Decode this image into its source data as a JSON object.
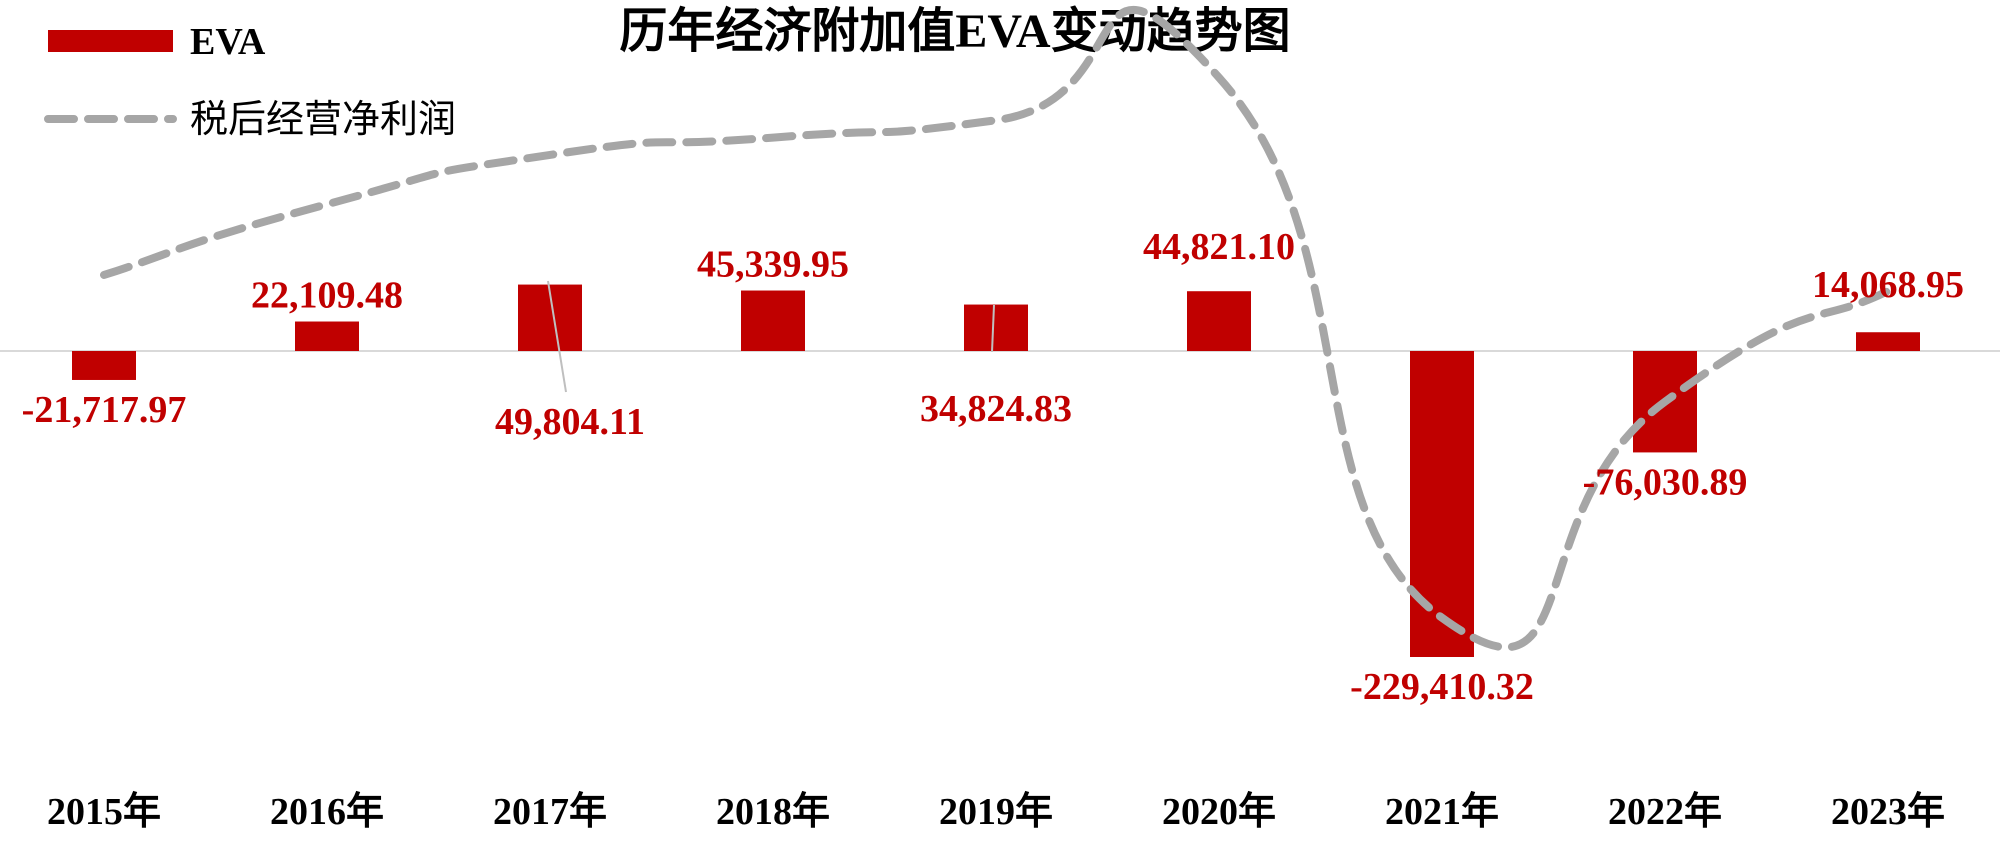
{
  "chart_data": {
    "type": "bar",
    "title": "历年经济附加值EVA变动趋势图",
    "categories": [
      "2015年",
      "2016年",
      "2017年",
      "2018年",
      "2019年",
      "2020年",
      "2021年",
      "2022年",
      "2023年"
    ],
    "series": [
      {
        "name": "EVA",
        "type": "bar",
        "color": "#c00000",
        "values": [
          -21717.97,
          22109.48,
          49804.11,
          45339.95,
          34824.83,
          44821.1,
          -229410.32,
          -76030.89,
          14068.95
        ],
        "labels": [
          "-21,717.97",
          "22,109.48",
          "49,804.11",
          "45,339.95",
          "34,824.83",
          "44,821.10",
          "-229,410.32",
          "-76,030.89",
          "14,068.95"
        ]
      },
      {
        "name": "税后经营净利润",
        "type": "line",
        "style": "dashed",
        "color": "#a6a6a6",
        "values": [
          57000,
          110000,
          147000,
          160000,
          173000,
          205000,
          -200000,
          -38000,
          45000
        ]
      }
    ],
    "xlabel": "",
    "ylabel": "",
    "ylim": [
      -300000,
      250000
    ],
    "grid": false,
    "legend_position": "top-left"
  }
}
